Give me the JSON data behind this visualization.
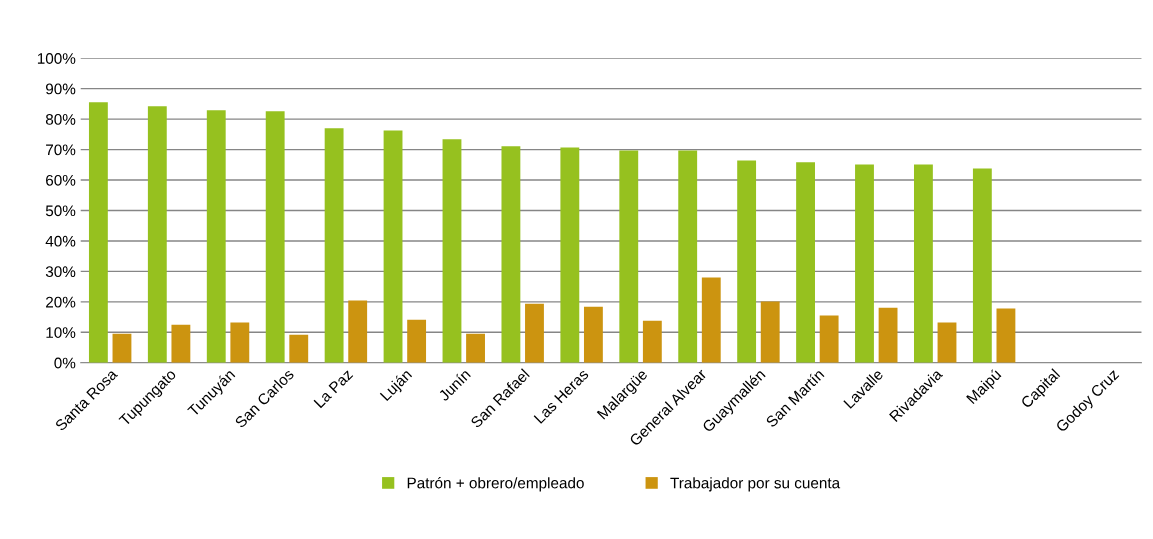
{
  "chart_data": {
    "type": "bar",
    "categories": [
      "Santa Rosa",
      "Tupungato",
      "Tunuyán",
      "San Carlos",
      "La Paz",
      "Luján",
      "Junín",
      "San Rafael",
      "Las Heras",
      "Malargüe",
      "General Alvear",
      "Guaymallén",
      "San Martín",
      "Lavalle",
      "Rivadavia",
      "Maipú",
      "Capital",
      "Godoy Cruz"
    ],
    "series": [
      {
        "name": "Patrón + obrero/empleado",
        "color": "#96c11f",
        "values": [
          85.5,
          84.2,
          82.9,
          82.6,
          77.0,
          76.3,
          73.4,
          71.1,
          70.7,
          69.7,
          69.7,
          66.4,
          65.8,
          65.1,
          65.1,
          63.8,
          null,
          null
        ]
      },
      {
        "name": "Trabajador por su cuenta",
        "color": "#cc9410",
        "values": [
          9.5,
          12.5,
          13.2,
          9.2,
          20.4,
          14.1,
          9.5,
          19.4,
          18.4,
          13.8,
          28.0,
          20.1,
          15.5,
          18.1,
          13.2,
          17.8,
          null,
          null
        ]
      }
    ],
    "ylim": [
      0,
      100
    ],
    "yticks": [
      {
        "value": 0,
        "label": "0%"
      },
      {
        "value": 10,
        "label": "10%"
      },
      {
        "value": 20,
        "label": "20%"
      },
      {
        "value": 30,
        "label": "30%"
      },
      {
        "value": 40,
        "label": "40%"
      },
      {
        "value": 50,
        "label": "50%"
      },
      {
        "value": 60,
        "label": "60%"
      },
      {
        "value": 70,
        "label": "70%"
      },
      {
        "value": 80,
        "label": "80%"
      },
      {
        "value": 90,
        "label": "90%"
      },
      {
        "value": 100,
        "label": "100%"
      }
    ],
    "grid": "y",
    "legend": "bottom"
  }
}
